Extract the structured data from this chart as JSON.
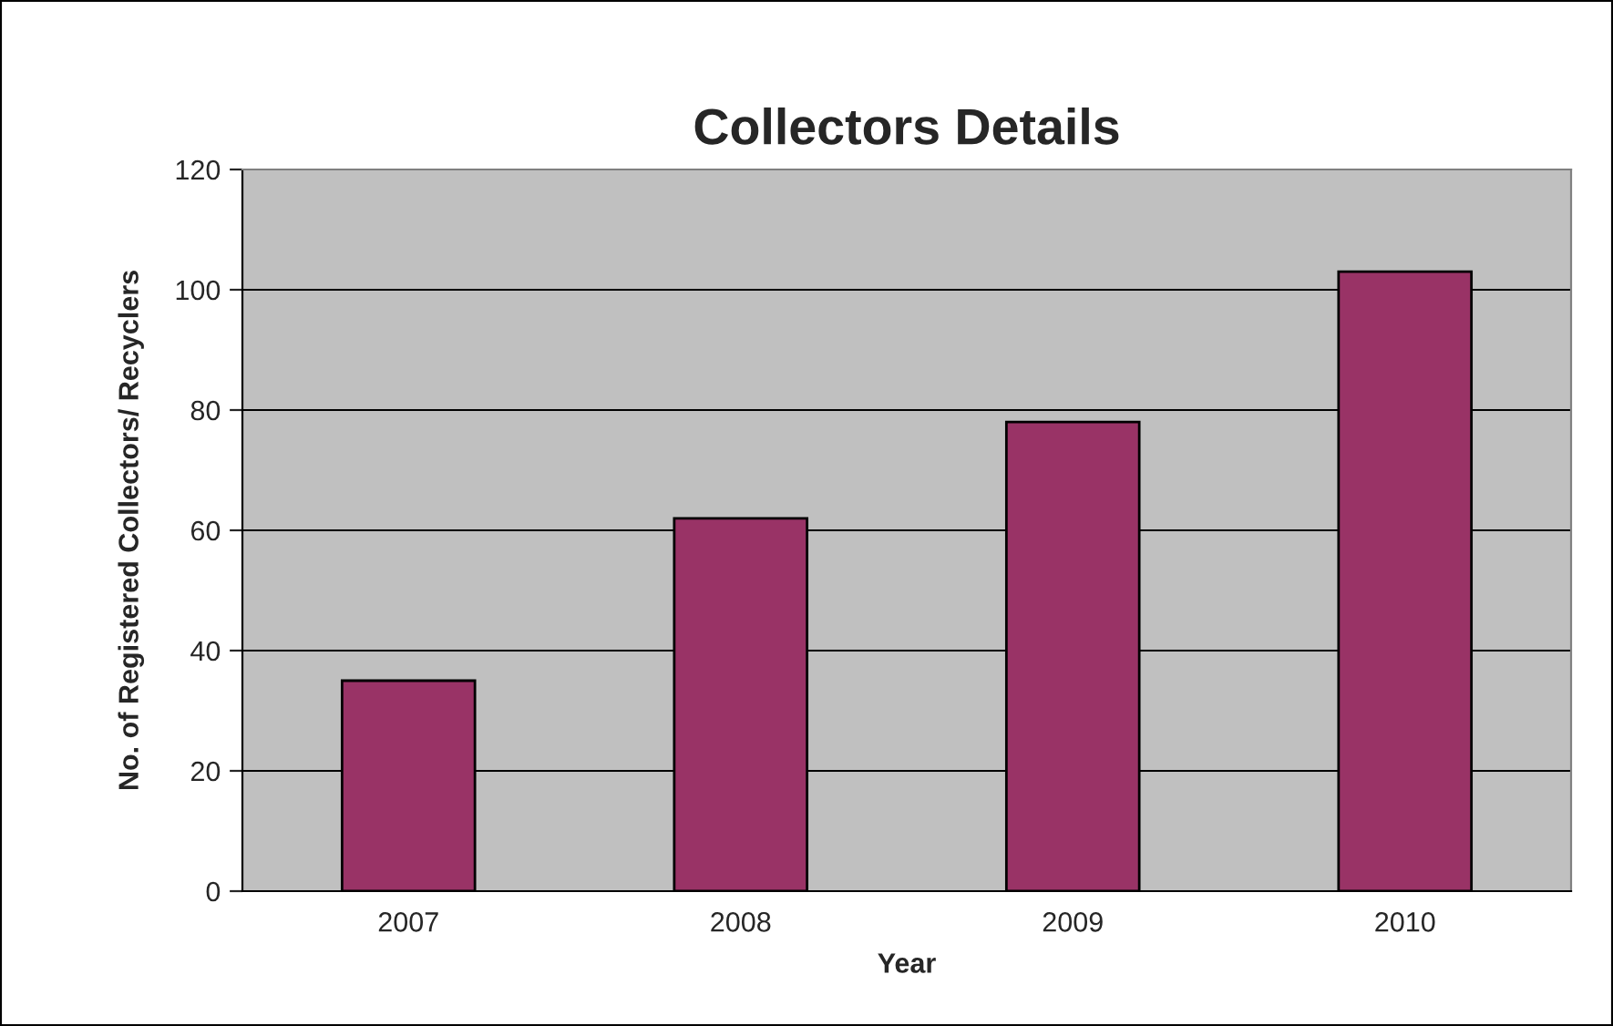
{
  "chart_data": {
    "type": "bar",
    "title": "Collectors Details",
    "xlabel": "Year",
    "ylabel": "No. of Registered Collectors/ Recyclers",
    "categories": [
      "2007",
      "2008",
      "2009",
      "2010"
    ],
    "series": [
      {
        "color": "#993366",
        "values": [
          35,
          62,
          78,
          103
        ]
      }
    ],
    "ylim": [
      0,
      120
    ],
    "yticks": [
      0,
      20,
      40,
      60,
      80,
      100,
      120
    ],
    "grid": "y",
    "legend": false
  }
}
